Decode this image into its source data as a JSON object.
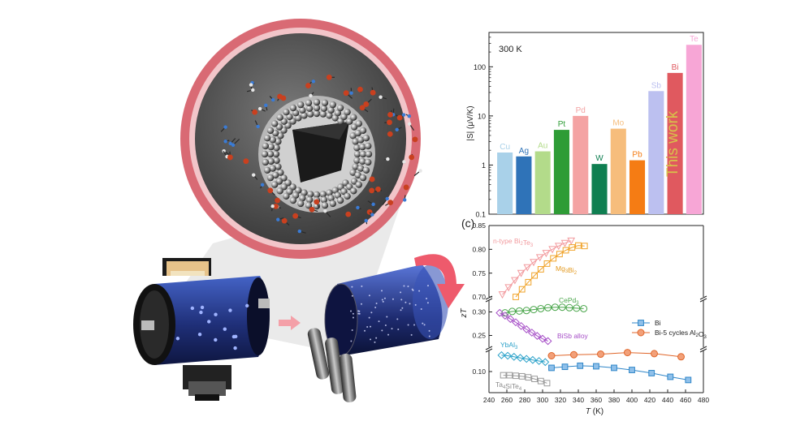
{
  "colors": {
    "ring": "#d96a74",
    "sphere_bg": "#5f5f5f",
    "cylinder": "#2b3f8f",
    "arrow": "#ee5a6c"
  },
  "chart_data": [
    {
      "type": "bar",
      "title": "300 K",
      "ylabel": "|S|  (μV/K)",
      "yscale": "log",
      "ylim": [
        0.1,
        500
      ],
      "yticks": [
        "0.1",
        "1",
        "10",
        "100"
      ],
      "categories": [
        "Cu",
        "Ag",
        "Au",
        "Pt",
        "Pd",
        "W",
        "Mo",
        "Pb",
        "Sb",
        "Bi",
        "Te"
      ],
      "values": [
        1.8,
        1.5,
        1.9,
        5.2,
        10,
        1.05,
        5.5,
        1.25,
        32,
        75,
        280
      ],
      "colors": [
        "#a9d1e9",
        "#2f73b8",
        "#b3db8a",
        "#2e9c36",
        "#f4a3a3",
        "#0f7f51",
        "#f6bd7c",
        "#f57c14",
        "#bcc0f0",
        "#e0595f",
        "#f7a6d6"
      ],
      "annotation": "This work"
    },
    {
      "type": "line",
      "panel_label": "(c)",
      "xlabel": "T (K)",
      "ylabel": "zT",
      "xlim": [
        240,
        480
      ],
      "xticks": [
        240,
        260,
        280,
        300,
        320,
        340,
        360,
        380,
        400,
        420,
        440,
        460,
        480
      ],
      "y_segments": [
        {
          "range": [
            0.7,
            0.85
          ],
          "ticks": [
            "0.70",
            "0.75",
            "0.80",
            "0.85"
          ]
        },
        {
          "range": [
            0.225,
            0.325
          ],
          "ticks": [
            "0.25",
            "0.30"
          ]
        },
        {
          "range": [
            0.06,
            0.14
          ],
          "ticks": [
            "0.10"
          ]
        }
      ],
      "series": [
        {
          "name": "n-type Bi2Te3",
          "label_main": "n-type Bi",
          "label_sub1": "2",
          "label_mid": "Te",
          "label_sub2": "3",
          "color": "#f29a9e",
          "marker": "triangle-down-open",
          "segment": 0,
          "x": [
            255,
            262,
            269,
            276,
            283,
            290,
            297,
            304,
            311,
            318,
            325,
            332
          ],
          "y": [
            0.705,
            0.72,
            0.735,
            0.75,
            0.762,
            0.773,
            0.783,
            0.792,
            0.8,
            0.807,
            0.813,
            0.818
          ]
        },
        {
          "name": "Mg3Bi2",
          "label_main": "Mg",
          "label_sub1": "3",
          "label_mid": "Bi",
          "label_sub2": "2",
          "color": "#f0a32a",
          "marker": "square-open",
          "segment": 0,
          "x": [
            270,
            277,
            284,
            291,
            298,
            305,
            312,
            319,
            326,
            333,
            340,
            347
          ],
          "y": [
            0.7,
            0.716,
            0.731,
            0.745,
            0.758,
            0.77,
            0.781,
            0.79,
            0.798,
            0.804,
            0.808,
            0.807
          ]
        },
        {
          "name": "CePd3",
          "label_main": "CePd",
          "label_sub1": "3",
          "color": "#49a54a",
          "marker": "circle-open",
          "segment": 1,
          "x": [
            258,
            266,
            274,
            282,
            290,
            298,
            306,
            314,
            322,
            330,
            338,
            346
          ],
          "y": [
            0.298,
            0.301,
            0.302,
            0.303,
            0.305,
            0.307,
            0.309,
            0.31,
            0.31,
            0.309,
            0.308,
            0.307
          ]
        },
        {
          "name": "BiSb alloy",
          "label_main": "BiSb alloy",
          "color": "#a64fc7",
          "marker": "diamond-open",
          "segment": 1,
          "x": [
            252,
            258,
            264,
            270,
            276,
            282,
            288,
            294,
            300,
            306
          ],
          "y": [
            0.298,
            0.292,
            0.285,
            0.278,
            0.27,
            0.263,
            0.256,
            0.249,
            0.243,
            0.238
          ]
        },
        {
          "name": "YbAl3",
          "label_main": "YbAl",
          "label_sub1": "3",
          "color": "#2aa1c9",
          "marker": "diamond-open",
          "segment": 2,
          "x": [
            254,
            261,
            268,
            275,
            282,
            289,
            296,
            303
          ],
          "y": [
            0.131,
            0.13,
            0.128,
            0.126,
            0.124,
            0.122,
            0.12,
            0.118
          ]
        },
        {
          "name": "Ta4SiTe4",
          "label_main": "Ta",
          "label_sub1": "4",
          "label_mid": "SiTe",
          "label_sub2": "4",
          "color": "#9a9a9a",
          "marker": "square-open",
          "segment": 2,
          "x": [
            256,
            263,
            270,
            277,
            284,
            291,
            298,
            305
          ],
          "y": [
            0.093,
            0.093,
            0.092,
            0.091,
            0.089,
            0.086,
            0.082,
            0.078
          ]
        },
        {
          "name": "Bi",
          "label_main": "Bi",
          "color": "#2f86c8",
          "marker": "square-filled",
          "face": "#8fc0ea",
          "segment": 2,
          "x": [
            310,
            325,
            342,
            360,
            380,
            400,
            422,
            443,
            463
          ],
          "y": [
            0.107,
            0.109,
            0.111,
            0.11,
            0.107,
            0.103,
            0.097,
            0.09,
            0.084
          ]
        },
        {
          "name": "Bi-5 cycles Al2O3",
          "label_main": "Bi-5 cycles Al",
          "label_sub1": "2",
          "label_mid": "O",
          "label_sub2": "3",
          "color": "#e0662a",
          "marker": "circle-filled",
          "face": "#f2a079",
          "segment": 2,
          "x": [
            310,
            335,
            365,
            395,
            425,
            455
          ],
          "y": [
            0.13,
            0.132,
            0.133,
            0.136,
            0.134,
            0.128
          ]
        }
      ]
    }
  ]
}
